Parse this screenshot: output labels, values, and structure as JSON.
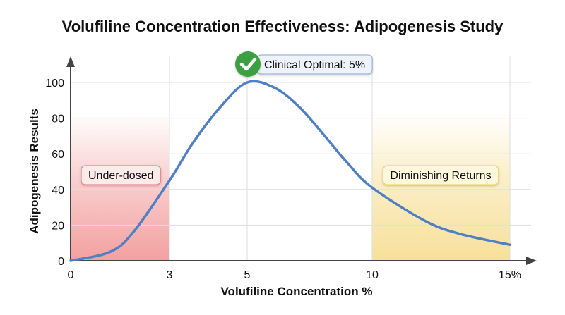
{
  "chart_data": {
    "type": "line",
    "title": "Volufiline Concentration Effectiveness: Adipogenesis Study",
    "xlabel": "Volufiline Concentration %",
    "ylabel": "Adipogenesis Results",
    "xticks": [
      {
        "value": 0,
        "label": "0"
      },
      {
        "value": 3,
        "label": "3"
      },
      {
        "value": 5,
        "label": "5"
      },
      {
        "value": 10,
        "label": "10"
      },
      {
        "value": 15,
        "label": "15%"
      }
    ],
    "yticks": [
      0,
      20,
      40,
      60,
      80,
      100
    ],
    "xlim": [
      0,
      15
    ],
    "ylim": [
      0,
      100
    ],
    "grid": true,
    "series": [
      {
        "color": "#4f7fc4",
        "x": [
          0,
          1.2,
          1.9,
          3,
          3.6,
          4.3,
          5,
          6.1,
          7.1,
          8.1,
          9,
          10,
          11.9,
          13.2,
          15
        ],
        "y": [
          0,
          5,
          16,
          45,
          66,
          86,
          100,
          97,
          86,
          70,
          55,
          41,
          22.5,
          15,
          9
        ]
      }
    ],
    "regions": [
      {
        "label": "Under-dosed",
        "from": 0,
        "to": 3,
        "color": "#f3a0a0"
      },
      {
        "label": "Diminishing Returns",
        "from": 10,
        "to": 15,
        "color": "#f7e09a"
      }
    ],
    "annotation": {
      "label": "Clinical Optimal: 5%",
      "x": 5,
      "icon": "check-circle-icon",
      "color": "#3aa043"
    }
  }
}
